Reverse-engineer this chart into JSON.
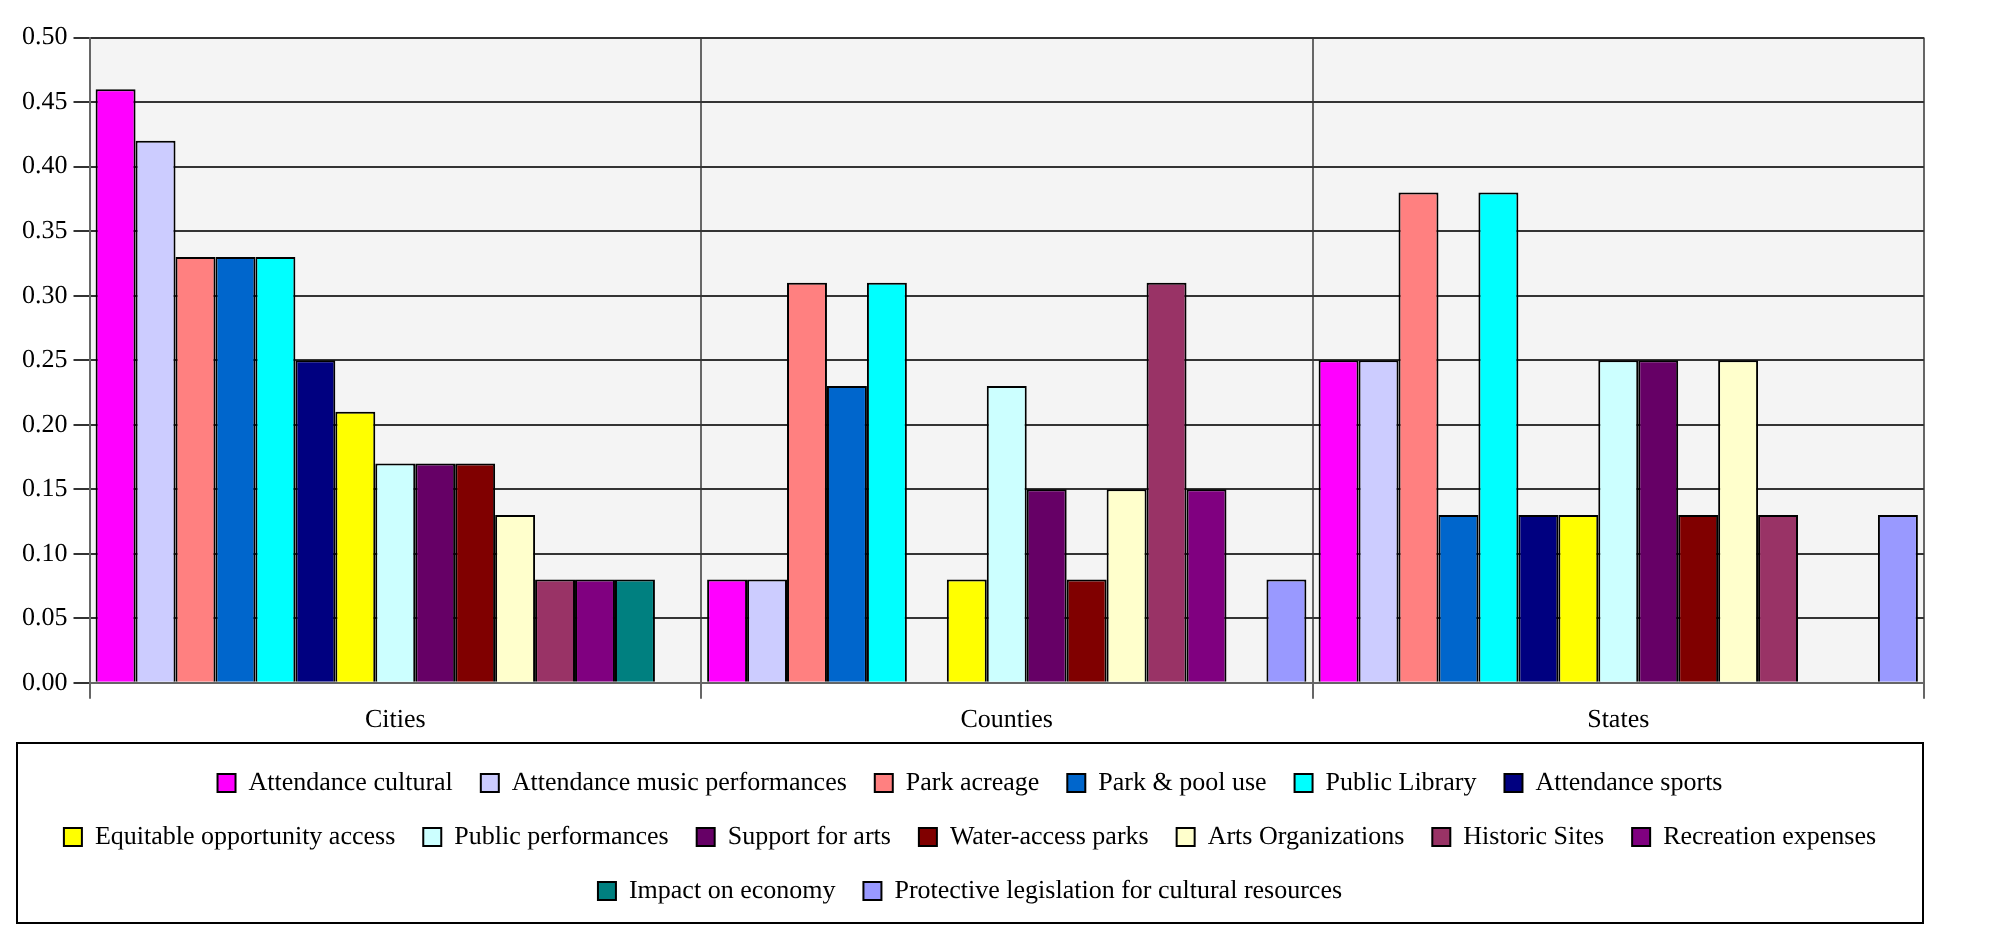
{
  "chart_data": {
    "type": "bar",
    "categories": [
      "Cities",
      "Counties",
      "States"
    ],
    "series": [
      {
        "name": "Attendance cultural",
        "color": "#ff00ff",
        "values": [
          0.46,
          0.08,
          0.25
        ]
      },
      {
        "name": "Attendance music performances",
        "color": "#ccccff",
        "values": [
          0.42,
          0.08,
          0.25
        ]
      },
      {
        "name": "Park acreage",
        "color": "#ff8080",
        "values": [
          0.33,
          0.31,
          0.38
        ]
      },
      {
        "name": "Park & pool use",
        "color": "#0066cc",
        "values": [
          0.33,
          0.23,
          0.13
        ]
      },
      {
        "name": "Public Library",
        "color": "#00ffff",
        "values": [
          0.33,
          0.31,
          0.38
        ]
      },
      {
        "name": "Attendance sports",
        "color": "#000080",
        "values": [
          0.25,
          0,
          0.13
        ]
      },
      {
        "name": "Equitable opportunity access",
        "color": "#ffff00",
        "values": [
          0.21,
          0.08,
          0.13
        ]
      },
      {
        "name": "Public performances",
        "color": "#ccffff",
        "values": [
          0.17,
          0.23,
          0.25
        ]
      },
      {
        "name": "Support for arts",
        "color": "#660066",
        "values": [
          0.17,
          0.15,
          0.25
        ]
      },
      {
        "name": "Water-access parks",
        "color": "#800000",
        "values": [
          0.17,
          0.08,
          0.13
        ]
      },
      {
        "name": "Arts Organizations",
        "color": "#ffffcc",
        "values": [
          0.13,
          0.15,
          0.25
        ]
      },
      {
        "name": "Historic Sites",
        "color": "#993366",
        "values": [
          0.08,
          0.31,
          0.13
        ]
      },
      {
        "name": "Recreation expenses",
        "color": "#800080",
        "values": [
          0.08,
          0.15,
          0
        ]
      },
      {
        "name": "Impact on economy",
        "color": "#008080",
        "values": [
          0.08,
          0,
          0
        ]
      },
      {
        "name": "Protective legislation for cultural resources",
        "color": "#9999ff",
        "values": [
          0,
          0.08,
          0.13
        ]
      }
    ],
    "ylim": [
      0,
      0.5
    ],
    "yticks": [
      {
        "value": 0,
        "label": "0.00"
      },
      {
        "value": 0.05,
        "label": "0.05"
      },
      {
        "value": 0.1,
        "label": "0.10"
      },
      {
        "value": 0.15,
        "label": "0.15"
      },
      {
        "value": 0.2,
        "label": "0.20"
      },
      {
        "value": 0.25,
        "label": "0.25"
      },
      {
        "value": 0.3,
        "label": "0.30"
      },
      {
        "value": 0.35,
        "label": "0.35"
      },
      {
        "value": 0.4,
        "label": "0.40"
      },
      {
        "value": 0.45,
        "label": "0.45"
      },
      {
        "value": 0.5,
        "label": "0.50"
      }
    ],
    "grid": true,
    "legend": "bottom"
  }
}
